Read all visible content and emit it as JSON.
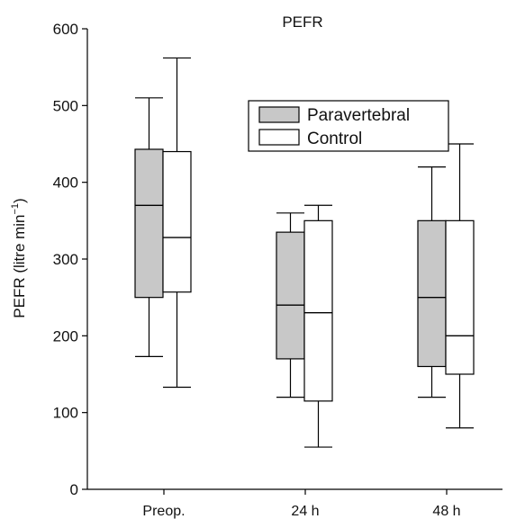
{
  "chart_data": {
    "type": "boxplot",
    "title": "PEFR",
    "ylabel": "PEFR (litre min",
    "ylabel_sup": "−1",
    "ylabel_close": ")",
    "xlabel": "",
    "ylim": [
      0,
      600
    ],
    "yticks": [
      0,
      100,
      200,
      300,
      400,
      500,
      600
    ],
    "grid": false,
    "legend_position": "top-right",
    "categories": [
      "Preop.",
      "24 h",
      "48 h"
    ],
    "series": [
      {
        "name": "Paravertebral",
        "fill": "#c8c8c8",
        "boxes": [
          {
            "min": 173,
            "q1": 250,
            "median": 370,
            "q3": 443,
            "max": 510
          },
          {
            "min": 120,
            "q1": 170,
            "median": 240,
            "q3": 335,
            "max": 360
          },
          {
            "min": 120,
            "q1": 160,
            "median": 250,
            "q3": 350,
            "max": 420
          }
        ]
      },
      {
        "name": "Control",
        "fill": "#ffffff",
        "boxes": [
          {
            "min": 133,
            "q1": 257,
            "median": 328,
            "q3": 440,
            "max": 562
          },
          {
            "min": 55,
            "q1": 115,
            "median": 230,
            "q3": 350,
            "max": 370
          },
          {
            "min": 80,
            "q1": 150,
            "median": 200,
            "q3": 350,
            "max": 450
          }
        ]
      }
    ]
  }
}
